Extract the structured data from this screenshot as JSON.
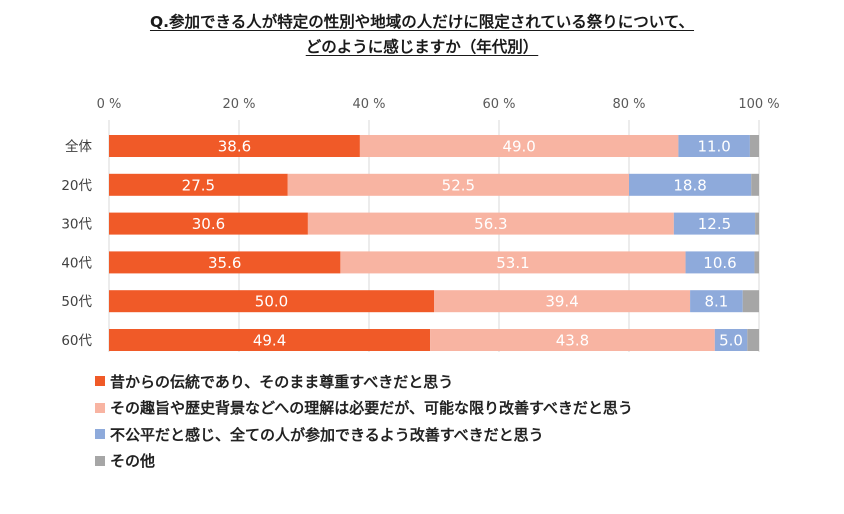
{
  "title_line1": "Q.参加できる人が特定の性別や地域の人だけに限定されている祭りについて、",
  "title_line2": "どのように感じますか（年代別）",
  "chart_data": {
    "type": "bar",
    "orientation": "horizontal",
    "stacked": true,
    "percent_stacked": true,
    "xlim": [
      0,
      100
    ],
    "x_ticks": [
      "0 %",
      "20 %",
      "40 %",
      "60 %",
      "80 %",
      "100 %"
    ],
    "x_tick_values": [
      0,
      20,
      40,
      60,
      80,
      100
    ],
    "grid": true,
    "categories": [
      "全体",
      "20代",
      "30代",
      "40代",
      "50代",
      "60代"
    ],
    "series": [
      {
        "name": "昔からの伝統であり、そのまま尊重すべきだと思う",
        "color": "#f05a28",
        "values": [
          38.6,
          27.5,
          30.6,
          35.6,
          50.0,
          49.4
        ],
        "labels": [
          "38.6",
          "27.5",
          "30.6",
          "35.6",
          "50.0",
          "49.4"
        ]
      },
      {
        "name": "その趣旨や歴史背景などへの理解は必要だが、可能な限り改善すべきだと思う",
        "color": "#f8b4a2",
        "values": [
          49.0,
          52.5,
          56.3,
          53.1,
          39.4,
          43.8
        ],
        "labels": [
          "49.0",
          "52.5",
          "56.3",
          "53.1",
          "39.4",
          "43.8"
        ]
      },
      {
        "name": "不公平だと感じ、全ての人が参加できるよう改善すべきだと思う",
        "color": "#8eaadb",
        "values": [
          11.0,
          18.8,
          12.5,
          10.6,
          8.1,
          5.0
        ],
        "labels": [
          "11.0",
          "18.8",
          "12.5",
          "10.6",
          "8.1",
          "5.0"
        ]
      },
      {
        "name": "その他",
        "color": "#a6a6a6",
        "values": [
          1.4,
          1.2,
          0.6,
          0.7,
          2.5,
          1.8
        ],
        "labels": []
      }
    ],
    "legend_position": "bottom-left"
  }
}
